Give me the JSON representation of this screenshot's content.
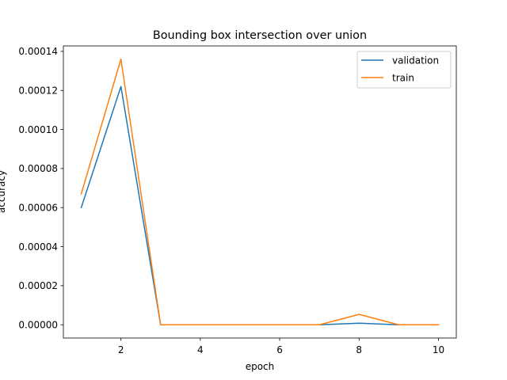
{
  "chart_data": {
    "type": "line",
    "title": "Bounding box intersection over union",
    "xlabel": "epoch",
    "ylabel": "accuracy",
    "xlim": [
      0.55,
      10.45
    ],
    "ylim": [
      -6.8e-06,
      0.0001428
    ],
    "x_ticks": [
      2,
      4,
      6,
      8,
      10
    ],
    "x_tick_labels": [
      "2",
      "4",
      "6",
      "8",
      "10"
    ],
    "y_ticks": [
      0,
      2e-05,
      4e-05,
      6e-05,
      8e-05,
      0.0001,
      0.00012,
      0.00014
    ],
    "y_tick_labels": [
      "0.00000",
      "0.00002",
      "0.00004",
      "0.00006",
      "0.00008",
      "0.00010",
      "0.00012",
      "0.00014"
    ],
    "grid": false,
    "legend_position": "top-right",
    "x": [
      1,
      2,
      3,
      4,
      5,
      6,
      7,
      8,
      9,
      10
    ],
    "series": [
      {
        "name": "validation",
        "color": "#1f77b4",
        "values": [
          6e-05,
          0.000122,
          0,
          0,
          0,
          0,
          0,
          8e-07,
          0,
          0
        ]
      },
      {
        "name": "train",
        "color": "#ff7f0e",
        "values": [
          6.7e-05,
          0.000136,
          0,
          0,
          0,
          0,
          0,
          5.3e-06,
          0,
          0
        ]
      }
    ]
  }
}
